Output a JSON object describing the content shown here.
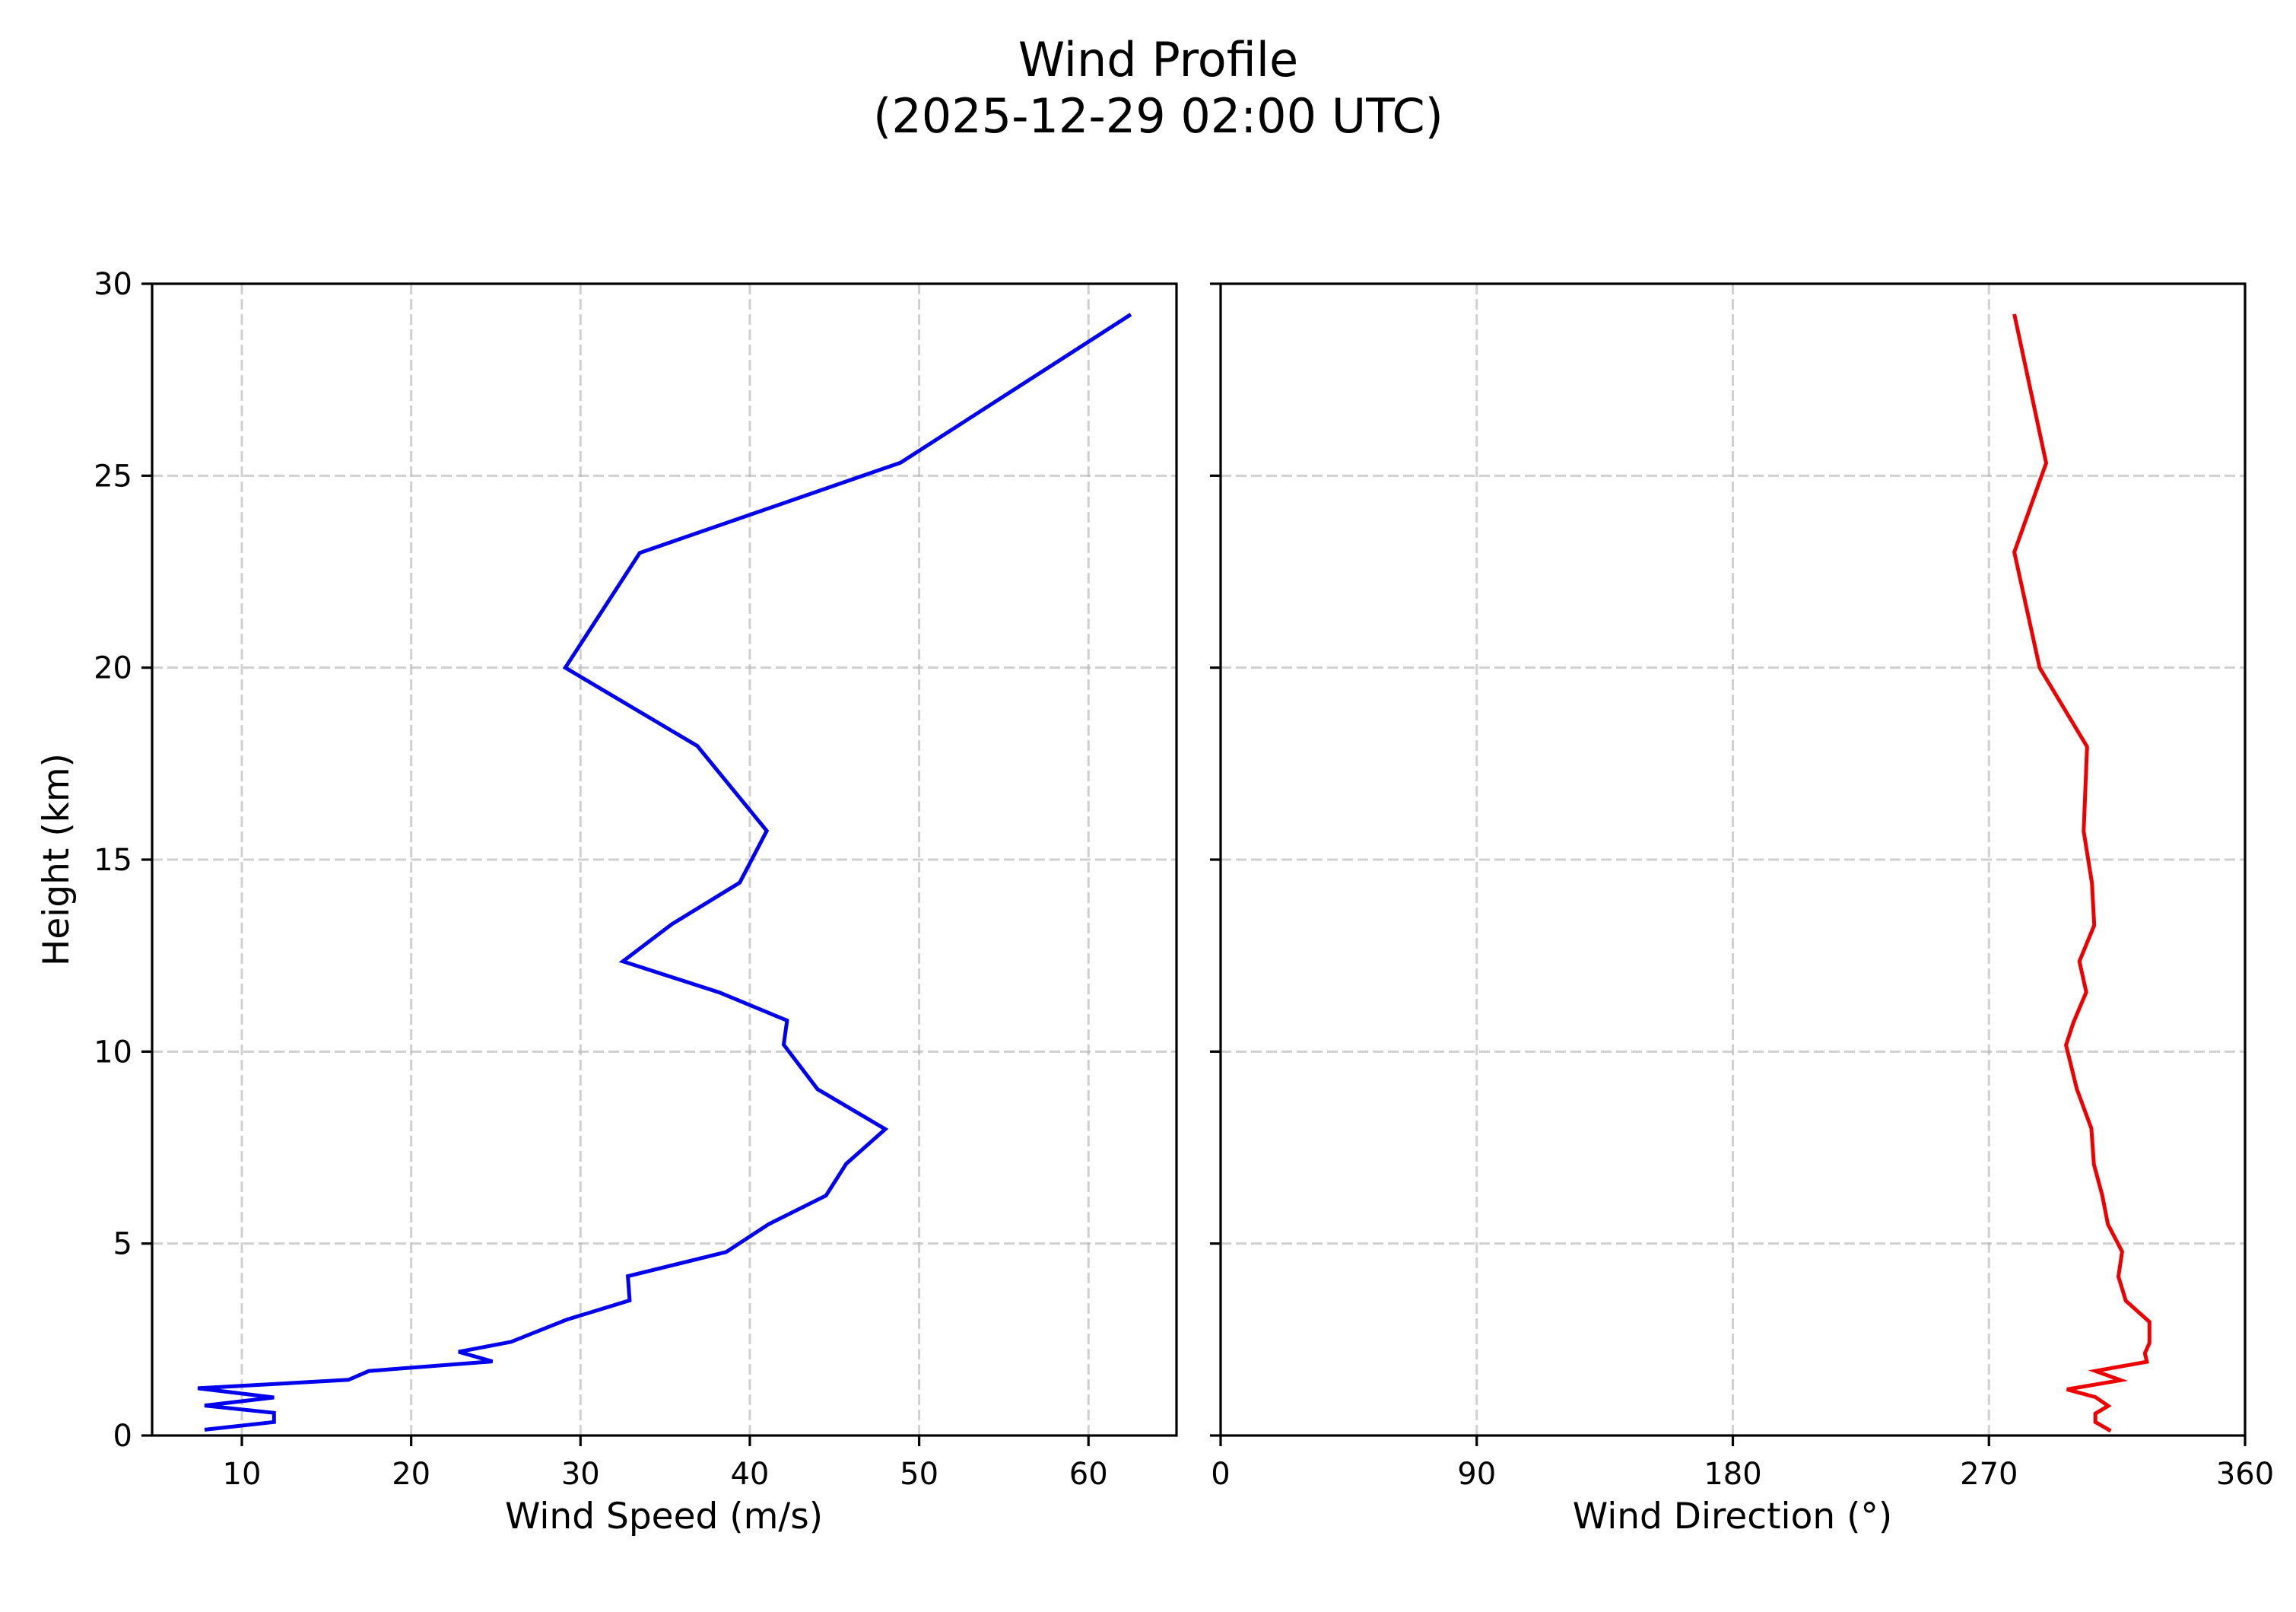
{
  "figure": {
    "title_line1": "Wind Profile",
    "title_line2": "(2025-12-29 02:00 UTC)"
  },
  "left_panel": {
    "xlabel": "Wind Speed (m/s)",
    "ylabel": "Height (km)",
    "xticks": [
      "10",
      "20",
      "30",
      "40",
      "50",
      "60"
    ],
    "yticks": [
      "0",
      "5",
      "10",
      "15",
      "20",
      "25",
      "30"
    ]
  },
  "right_panel": {
    "xlabel": "Wind Direction (°)",
    "xticks": [
      "0",
      "90",
      "180",
      "270",
      "360"
    ]
  },
  "colors": {
    "speed_line": "#0000ee",
    "direction_line": "#ee0000",
    "grid": "#b0b0b0"
  },
  "chart_data": [
    {
      "type": "line",
      "title": "Wind Profile (2025-12-29 02:00 UTC)",
      "xlabel": "Wind Speed (m/s)",
      "ylabel": "Height (km)",
      "xlim": [
        4.7,
        65.2
      ],
      "ylim": [
        0,
        30
      ],
      "xticks": [
        10,
        20,
        30,
        40,
        50,
        60
      ],
      "yticks": [
        0,
        5,
        10,
        15,
        20,
        25,
        30
      ],
      "grid": true,
      "series": [
        {
          "name": "Wind Speed",
          "color": "#0000ee",
          "x": [
            7.8,
            11.9,
            11.9,
            7.8,
            11.9,
            7.4,
            16.3,
            17.5,
            24.8,
            22.8,
            25.9,
            29.2,
            32.9,
            32.8,
            38.6,
            41.1,
            44.5,
            45.7,
            48.0,
            44.0,
            42.0,
            42.2,
            38.2,
            32.5,
            35.4,
            39.4,
            41.0,
            36.9,
            29.1,
            33.5,
            48.9,
            62.5
          ],
          "y": [
            0.15,
            0.35,
            0.59,
            0.78,
            0.99,
            1.23,
            1.45,
            1.68,
            1.93,
            2.18,
            2.44,
            3.02,
            3.52,
            4.15,
            4.78,
            5.5,
            6.25,
            7.08,
            7.98,
            9.02,
            10.18,
            10.81,
            11.54,
            12.35,
            13.32,
            14.4,
            15.75,
            17.96,
            20.0,
            22.99,
            25.34,
            29.2
          ]
        }
      ]
    },
    {
      "type": "line",
      "xlabel": "Wind Direction (°)",
      "ylabel": "",
      "xlim": [
        0,
        360
      ],
      "ylim": [
        0,
        30
      ],
      "xticks": [
        0,
        90,
        180,
        270,
        360
      ],
      "yticks": [
        0,
        5,
        10,
        15,
        20,
        25,
        30
      ],
      "grid": true,
      "series": [
        {
          "name": "Wind Direction",
          "color": "#ee0000",
          "x": [
            312.8,
            307.4,
            307.4,
            311.9,
            307.4,
            297.4,
            316.3,
            307.4,
            325.5,
            324.8,
            326.4,
            326.4,
            318.1,
            315.5,
            316.8,
            311.8,
            309.8,
            306.9,
            306.0,
            300.9,
            297.1,
            299.7,
            304.2,
            301.8,
            307.0,
            306.2,
            303.3,
            304.5,
            287.8,
            278.9,
            290.1,
            278.9
          ],
          "y": [
            0.12,
            0.35,
            0.57,
            0.77,
            1.0,
            1.2,
            1.44,
            1.68,
            1.92,
            2.14,
            2.41,
            2.96,
            3.51,
            4.14,
            4.79,
            5.5,
            6.26,
            7.06,
            8.0,
            9.02,
            10.17,
            10.76,
            11.55,
            12.35,
            13.29,
            14.39,
            15.74,
            17.94,
            20.0,
            23.01,
            25.33,
            29.21
          ]
        }
      ]
    }
  ]
}
